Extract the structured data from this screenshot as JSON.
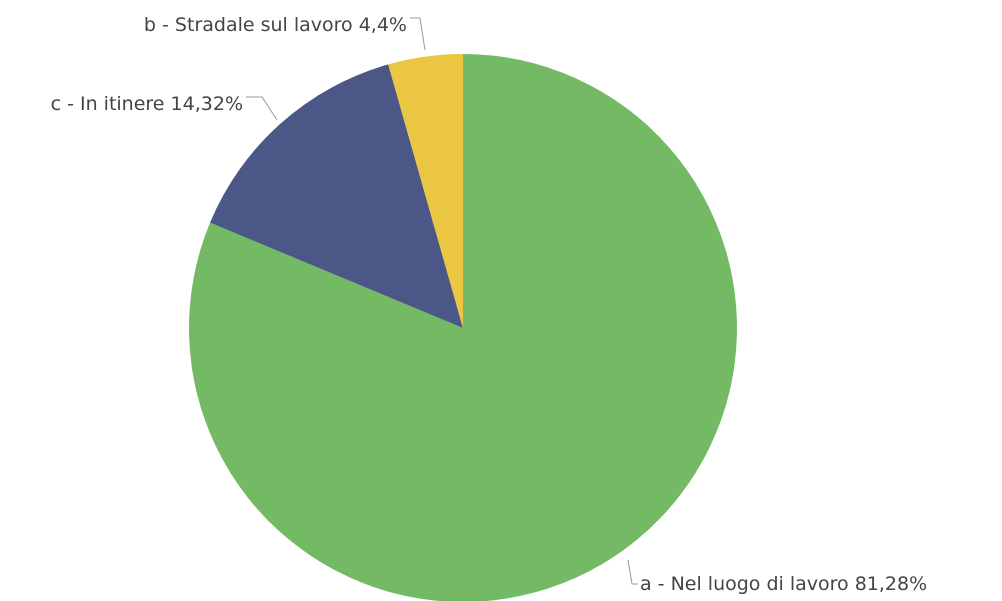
{
  "chart_data": {
    "type": "pie",
    "categories": [
      "a - Nel luogo di lavoro",
      "c - In itinere",
      "b - Stradale sul lavoro"
    ],
    "values": [
      81.28,
      14.32,
      4.4
    ],
    "value_labels": [
      "81,28%",
      "14,32%",
      "4,4%"
    ],
    "colors": [
      "#74b963",
      "#4a5787",
      "#ebc642"
    ]
  }
}
